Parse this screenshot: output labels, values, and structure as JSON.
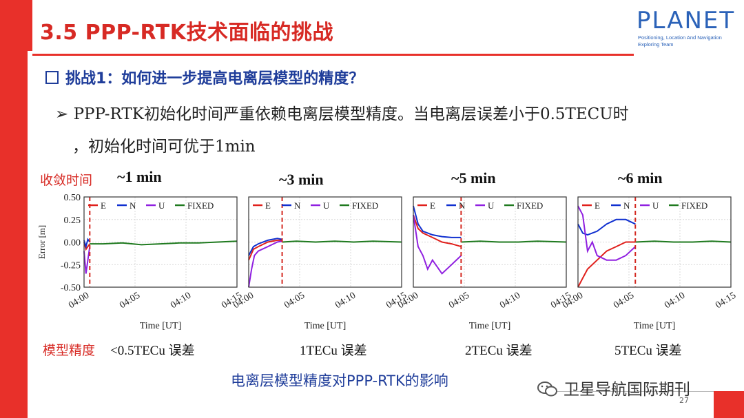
{
  "slide": {
    "title": "3.5 PPP-RTK技术面临的挑战",
    "logo_word": "PLANET",
    "logo_sub1": "Positioning, Location And Navigation",
    "logo_sub2": "Exploring Team",
    "challenge": "挑战1：如何进一步提高电离层模型的精度？",
    "bullet_line1": "➢ PPP-RTK初始化时间严重依赖电离层模型精度。当电离层误差小于0.5TECU时",
    "bullet_line2": "，初始化时间可优于1min",
    "convergence_label": "收敛时间",
    "model_label": "模型精度",
    "caption": "电离层模型精度对PPP-RTK的影响",
    "watermark": "卫星导航国际期刊",
    "page_number": "27",
    "colors": {
      "accent_red": "#e8302a",
      "title_red": "#d72a24",
      "navy": "#1f3d9a",
      "E": "#e0201c",
      "N": "#1030d0",
      "U": "#9020e0",
      "FIXED": "#1f7a1f"
    }
  },
  "chart_data": [
    {
      "type": "line",
      "convergence": "~1 min",
      "accuracy": "<0.5TECu 误差",
      "xlabel": "Time [UT]",
      "ylabel": "Error [m]",
      "xticks": [
        "04:00",
        "04:05",
        "04:10",
        "04:15"
      ],
      "yticks": [
        "0.50",
        "0.25",
        "0.00",
        "-0.25",
        "-0.50"
      ],
      "ylim": [
        -0.5,
        0.5
      ],
      "xlim_min": [
        0,
        16
      ],
      "fix_time_min": 0.6,
      "legend": [
        "E",
        "N",
        "U",
        "FIXED"
      ],
      "series": [
        {
          "name": "E",
          "x": [
            0,
            0.2,
            0.4,
            0.6
          ],
          "y": [
            0.0,
            -0.08,
            -0.05,
            -0.02
          ]
        },
        {
          "name": "N",
          "x": [
            0,
            0.2,
            0.4,
            0.6
          ],
          "y": [
            0.02,
            -0.05,
            0.03,
            0.0
          ]
        },
        {
          "name": "U",
          "x": [
            0,
            0.2,
            0.4,
            0.6
          ],
          "y": [
            -0.1,
            -0.35,
            -0.2,
            -0.05
          ]
        },
        {
          "name": "FIXED",
          "x": [
            0.6,
            2,
            4,
            6,
            8,
            10,
            12,
            14,
            16
          ],
          "y": [
            -0.02,
            -0.02,
            -0.01,
            -0.03,
            -0.02,
            -0.01,
            -0.01,
            0.0,
            0.01
          ]
        }
      ]
    },
    {
      "type": "line",
      "convergence": "~3 min",
      "accuracy": "1TECu 误差",
      "xlabel": "Time [UT]",
      "xticks": [
        "04:00",
        "04:05",
        "04:10",
        "04:15"
      ],
      "ylim": [
        -0.5,
        0.5
      ],
      "xlim_min": [
        0,
        16
      ],
      "fix_time_min": 3.5,
      "legend": [
        "E",
        "N",
        "U",
        "FIXED"
      ],
      "series": [
        {
          "name": "E",
          "x": [
            0,
            0.5,
            1,
            2,
            3,
            3.5
          ],
          "y": [
            -0.2,
            -0.08,
            -0.05,
            0.0,
            0.02,
            0.02
          ]
        },
        {
          "name": "N",
          "x": [
            0,
            0.5,
            1,
            2,
            3,
            3.5
          ],
          "y": [
            -0.15,
            -0.05,
            -0.02,
            0.02,
            0.04,
            0.03
          ]
        },
        {
          "name": "U",
          "x": [
            0,
            0.3,
            0.6,
            1,
            2,
            3,
            3.5
          ],
          "y": [
            -0.5,
            -0.3,
            -0.15,
            -0.1,
            -0.05,
            0.0,
            0.01
          ]
        },
        {
          "name": "FIXED",
          "x": [
            3.5,
            5,
            7,
            9,
            11,
            13,
            16
          ],
          "y": [
            0.0,
            0.01,
            0.0,
            0.01,
            0.0,
            0.01,
            0.0
          ]
        }
      ]
    },
    {
      "type": "line",
      "convergence": "~5 min",
      "accuracy": "2TECu 误差",
      "xlabel": "Time [UT]",
      "xticks": [
        "04:00",
        "04:05",
        "04:10",
        "04:15"
      ],
      "ylim": [
        -0.5,
        0.5
      ],
      "xlim_min": [
        0,
        16
      ],
      "fix_time_min": 5.0,
      "legend": [
        "E",
        "N",
        "U",
        "FIXED"
      ],
      "series": [
        {
          "name": "E",
          "x": [
            0,
            0.5,
            1,
            2,
            3,
            4,
            5
          ],
          "y": [
            0.3,
            0.15,
            0.1,
            0.05,
            0.0,
            -0.02,
            -0.05
          ]
        },
        {
          "name": "N",
          "x": [
            0,
            0.5,
            1,
            2,
            3,
            4,
            5
          ],
          "y": [
            0.4,
            0.2,
            0.12,
            0.08,
            0.06,
            0.05,
            0.05
          ]
        },
        {
          "name": "U",
          "x": [
            0,
            0.5,
            1,
            1.5,
            2,
            3,
            4,
            5
          ],
          "y": [
            0.3,
            -0.05,
            -0.15,
            -0.3,
            -0.2,
            -0.35,
            -0.25,
            -0.15
          ]
        },
        {
          "name": "FIXED",
          "x": [
            5,
            7,
            9,
            11,
            13,
            16
          ],
          "y": [
            0.0,
            0.01,
            0.0,
            0.0,
            0.01,
            0.0
          ]
        }
      ]
    },
    {
      "type": "line",
      "convergence": "~6 min",
      "accuracy": "5TECu 误差",
      "xlabel": "Time [UT]",
      "xticks": [
        "04:00",
        "04:05",
        "04:10",
        "04:15"
      ],
      "ylim": [
        -0.5,
        0.5
      ],
      "xlim_min": [
        0,
        16
      ],
      "fix_time_min": 6.0,
      "legend": [
        "E",
        "N",
        "U",
        "FIXED"
      ],
      "series": [
        {
          "name": "E",
          "x": [
            0,
            0.5,
            1,
            2,
            3,
            4,
            5,
            6
          ],
          "y": [
            -0.5,
            -0.4,
            -0.3,
            -0.2,
            -0.1,
            -0.05,
            0.0,
            0.0
          ]
        },
        {
          "name": "N",
          "x": [
            0,
            0.5,
            1,
            2,
            3,
            4,
            5,
            6
          ],
          "y": [
            0.2,
            0.1,
            0.08,
            0.12,
            0.2,
            0.25,
            0.25,
            0.2
          ]
        },
        {
          "name": "U",
          "x": [
            0,
            0.5,
            1,
            1.5,
            2,
            3,
            4,
            5,
            6
          ],
          "y": [
            0.4,
            0.3,
            -0.1,
            0.0,
            -0.15,
            -0.2,
            -0.2,
            -0.15,
            -0.05
          ]
        },
        {
          "name": "FIXED",
          "x": [
            6,
            8,
            10,
            12,
            14,
            16
          ],
          "y": [
            0.0,
            0.01,
            0.0,
            0.0,
            0.01,
            0.0
          ]
        }
      ]
    }
  ]
}
